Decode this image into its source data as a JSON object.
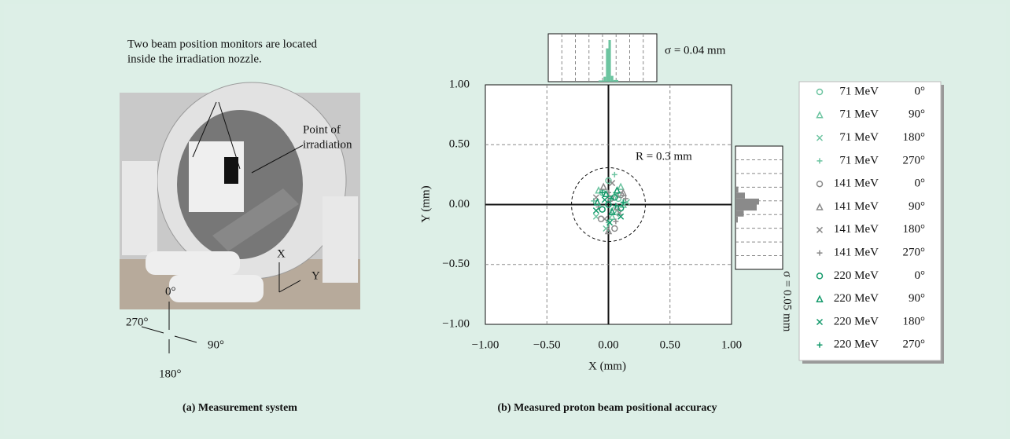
{
  "panel_a": {
    "annotation_lines": [
      "Two beam position monitors are located",
      "inside the irradiation nozzle."
    ],
    "point_lines": [
      "Point of",
      "irradiation"
    ],
    "axis_x": "X",
    "axis_y": "Y",
    "angles": {
      "top": "0°",
      "right": "90°",
      "bottom": "180°",
      "left": "270°"
    },
    "caption": "(a) Measurement system"
  },
  "chart_data": {
    "type": "scatter",
    "xlabel": "X (mm)",
    "ylabel": "Y (mm)",
    "caption": "(b) Measured proton beam positional accuracy",
    "xlim": [
      -1,
      1
    ],
    "ylim": [
      -1,
      1
    ],
    "xticks": [
      {
        "value": -1,
        "label": "−1.00"
      },
      {
        "value": -0.5,
        "label": "−0.50"
      },
      {
        "value": 0,
        "label": "0.00"
      },
      {
        "value": 0.5,
        "label": "0.50"
      },
      {
        "value": 1,
        "label": "1.00"
      }
    ],
    "yticks": [
      {
        "value": -1,
        "label": "−1.00"
      },
      {
        "value": -0.5,
        "label": "−0.50"
      },
      {
        "value": 0,
        "label": "0.00"
      },
      {
        "value": 0.5,
        "label": "0.50"
      },
      {
        "value": 1,
        "label": "1.00"
      }
    ],
    "grid": true,
    "circle": {
      "radius": 0.3,
      "label": "R = 0.3 mm"
    },
    "x_hist": {
      "label": "σ = 0.04 mm",
      "bins": [
        -0.08,
        -0.04,
        -0.02,
        0,
        0.02,
        0.04,
        0.08
      ],
      "counts": [
        3,
        12,
        80,
        100,
        14,
        4
      ]
    },
    "y_hist": {
      "label": "σ = 0.05 mm",
      "bins": [
        -0.15,
        -0.1,
        -0.05,
        0,
        0.05,
        0.1,
        0.15
      ],
      "counts": [
        10,
        35,
        90,
        100,
        40,
        12
      ]
    },
    "series": [
      {
        "name": "71 MeV",
        "angle": "0°",
        "marker": "circle",
        "color": "#6cc4a0",
        "x": [
          -0.05,
          0.04,
          0.0,
          0.08
        ],
        "y": [
          0.1,
          -0.05,
          0.2,
          0.05
        ]
      },
      {
        "name": "71 MeV",
        "angle": "90°",
        "marker": "triangle",
        "color": "#6cc4a0",
        "x": [
          0.12,
          -0.08,
          0.03,
          0.1
        ],
        "y": [
          0.0,
          0.12,
          -0.1,
          0.15
        ]
      },
      {
        "name": "71 MeV",
        "angle": "180°",
        "marker": "cross",
        "color": "#6cc4a0",
        "x": [
          -0.1,
          0.06,
          0.15,
          -0.02
        ],
        "y": [
          -0.1,
          0.08,
          0.02,
          -0.2
        ]
      },
      {
        "name": "71 MeV",
        "angle": "270°",
        "marker": "plus",
        "color": "#6cc4a0",
        "x": [
          0.0,
          -0.12,
          0.08,
          0.05
        ],
        "y": [
          -0.15,
          0.03,
          -0.08,
          0.25
        ]
      },
      {
        "name": "141 MeV",
        "angle": "0°",
        "marker": "circle",
        "color": "#8a8a8a",
        "x": [
          0.02,
          -0.06,
          0.1,
          0.05
        ],
        "y": [
          0.05,
          -0.12,
          0.08,
          -0.2
        ]
      },
      {
        "name": "141 MeV",
        "angle": "90°",
        "marker": "triangle",
        "color": "#8a8a8a",
        "x": [
          -0.04,
          0.07,
          0.0,
          0.12
        ],
        "y": [
          0.15,
          -0.02,
          -0.22,
          0.1
        ]
      },
      {
        "name": "141 MeV",
        "angle": "180°",
        "marker": "cross",
        "color": "#8a8a8a",
        "x": [
          0.09,
          -0.1,
          0.03,
          -0.03
        ],
        "y": [
          -0.07,
          0.06,
          0.18,
          -0.12
        ]
      },
      {
        "name": "141 MeV",
        "angle": "270°",
        "marker": "plus",
        "color": "#8a8a8a",
        "x": [
          -0.08,
          0.14,
          0.0,
          0.06
        ],
        "y": [
          -0.02,
          0.05,
          0.1,
          -0.14
        ]
      },
      {
        "name": "220 MeV",
        "angle": "0°",
        "marker": "circle",
        "color": "#12996a",
        "x": [
          0.0,
          0.05,
          -0.05,
          0.1
        ],
        "y": [
          0.0,
          0.06,
          -0.04,
          -0.03
        ]
      },
      {
        "name": "220 MeV",
        "angle": "90°",
        "marker": "triangle",
        "color": "#12996a",
        "x": [
          0.03,
          -0.09,
          0.07,
          -0.02
        ],
        "y": [
          -0.06,
          0.02,
          0.12,
          0.09
        ]
      },
      {
        "name": "220 MeV",
        "angle": "180°",
        "marker": "cross",
        "color": "#12996a",
        "x": [
          -0.03,
          0.1,
          0.01,
          -0.1
        ],
        "y": [
          0.04,
          -0.1,
          -0.15,
          -0.05
        ]
      },
      {
        "name": "220 MeV",
        "angle": "270°",
        "marker": "plus",
        "color": "#12996a",
        "x": [
          0.06,
          -0.05,
          0.02,
          0.12
        ],
        "y": [
          -0.01,
          0.1,
          0.05,
          0.02
        ]
      }
    ]
  }
}
